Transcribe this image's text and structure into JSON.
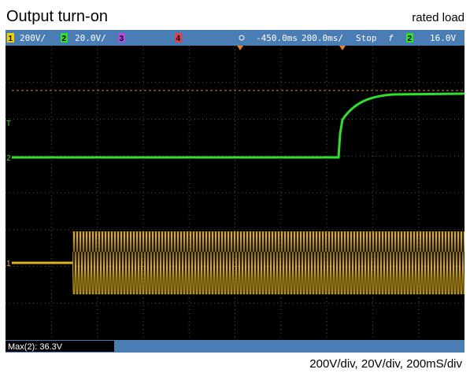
{
  "header": {
    "title": "Output turn-on",
    "note": "rated load"
  },
  "toolbar": {
    "ch1": "1",
    "ch1_scale": "200V/",
    "ch2": "2",
    "ch2_scale": "20.0V/",
    "ch3": "3",
    "ch4": "4",
    "delay": "-450.0ms",
    "timebase": "200.0ms/",
    "mode": "Stop",
    "trigger_edge": "f",
    "trigger_ch": "2",
    "trigger_level": "16.0V"
  },
  "markers": {
    "trigger": "T",
    "ch2": "2",
    "ch1": "1"
  },
  "status": {
    "measurement": "Max(2): 36.3V"
  },
  "caption": "200V/div, 20V/div, 200mS/div"
}
